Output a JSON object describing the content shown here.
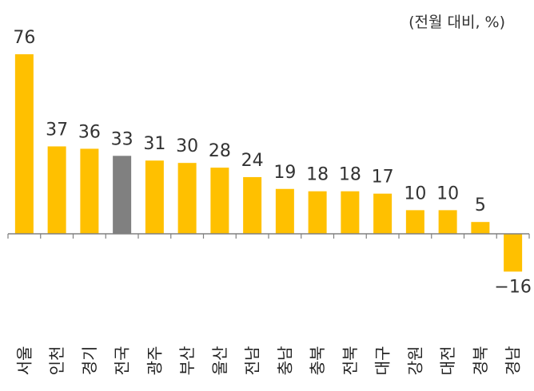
{
  "chart_data": {
    "type": "bar",
    "unit_label": "(전월 대비, %)",
    "categories": [
      "서울",
      "인천",
      "경기",
      "전국",
      "광주",
      "부산",
      "울산",
      "전남",
      "충남",
      "충북",
      "전북",
      "대구",
      "강원",
      "대전",
      "경북",
      "경남"
    ],
    "values": [
      76,
      37,
      36,
      33,
      31,
      30,
      28,
      24,
      19,
      18,
      18,
      17,
      10,
      10,
      5,
      -16
    ],
    "highlight_category": "전국",
    "colors": {
      "bar": "#FFC000",
      "highlight": "#808080",
      "axis": "#808080"
    },
    "ylim": [
      -16,
      76
    ],
    "grid": false,
    "legend": "none"
  }
}
